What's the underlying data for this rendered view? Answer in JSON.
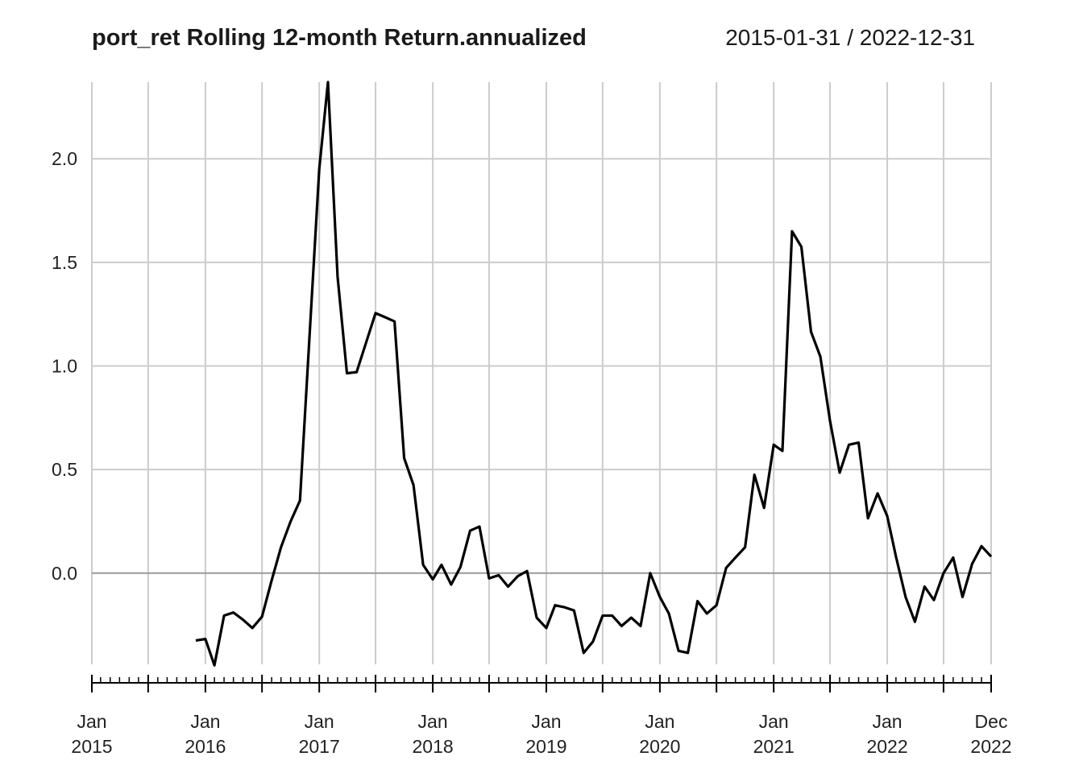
{
  "chart_data": {
    "type": "line",
    "title": "port_ret Rolling 12-month Return.annualized",
    "date_range": "2015-01-31 / 2022-12-31",
    "xlabel": "",
    "ylabel": "",
    "xlim": [
      "2015-01-31",
      "2022-12-31"
    ],
    "ylim": [
      -0.44,
      2.37
    ],
    "yticks": [
      0.0,
      0.5,
      1.0,
      1.5,
      2.0
    ],
    "ytick_labels": [
      "0.0",
      "0.5",
      "1.0",
      "1.5",
      "2.0"
    ],
    "xticks": [
      {
        "date": "2015-01-31",
        "line1": "Jan",
        "line2": "2015"
      },
      {
        "date": "2016-01-31",
        "line1": "Jan",
        "line2": "2016"
      },
      {
        "date": "2017-01-31",
        "line1": "Jan",
        "line2": "2017"
      },
      {
        "date": "2018-01-31",
        "line1": "Jan",
        "line2": "2018"
      },
      {
        "date": "2019-01-31",
        "line1": "Jan",
        "line2": "2019"
      },
      {
        "date": "2020-01-31",
        "line1": "Jan",
        "line2": "2020"
      },
      {
        "date": "2021-01-31",
        "line1": "Jan",
        "line2": "2021"
      },
      {
        "date": "2022-01-31",
        "line1": "Jan",
        "line2": "2022"
      },
      {
        "date": "2022-12-31",
        "line1": "Dec",
        "line2": "2022"
      }
    ],
    "grid": true,
    "colors": {
      "line": "#000000",
      "grid": "#cccccc",
      "zero_line": "#999999",
      "axis": "#000000"
    },
    "series": [
      {
        "name": "port_ret",
        "x": [
          "2015-12-31",
          "2016-01-31",
          "2016-02-29",
          "2016-03-31",
          "2016-04-30",
          "2016-05-31",
          "2016-06-30",
          "2016-07-31",
          "2016-08-31",
          "2016-09-30",
          "2016-10-31",
          "2016-11-30",
          "2016-12-31",
          "2017-01-31",
          "2017-02-28",
          "2017-03-31",
          "2017-04-30",
          "2017-05-31",
          "2017-06-30",
          "2017-07-31",
          "2017-08-31",
          "2017-09-30",
          "2017-10-31",
          "2017-11-30",
          "2017-12-31",
          "2018-01-31",
          "2018-02-28",
          "2018-03-31",
          "2018-04-30",
          "2018-05-31",
          "2018-06-30",
          "2018-07-31",
          "2018-08-31",
          "2018-09-30",
          "2018-10-31",
          "2018-11-30",
          "2018-12-31",
          "2019-01-31",
          "2019-02-28",
          "2019-03-31",
          "2019-04-30",
          "2019-05-31",
          "2019-06-30",
          "2019-07-31",
          "2019-08-31",
          "2019-09-30",
          "2019-10-31",
          "2019-11-30",
          "2019-12-31",
          "2020-01-31",
          "2020-02-29",
          "2020-03-31",
          "2020-04-30",
          "2020-05-31",
          "2020-06-30",
          "2020-07-31",
          "2020-08-31",
          "2020-09-30",
          "2020-10-31",
          "2020-11-30",
          "2020-12-31",
          "2021-01-31",
          "2021-02-28",
          "2021-03-31",
          "2021-04-30",
          "2021-05-31",
          "2021-06-30",
          "2021-07-31",
          "2021-08-31",
          "2021-09-30",
          "2021-10-31",
          "2021-11-30",
          "2021-12-31",
          "2022-01-31",
          "2022-02-28",
          "2022-03-31",
          "2022-04-30",
          "2022-05-31",
          "2022-06-30",
          "2022-07-31",
          "2022-08-31",
          "2022-09-30",
          "2022-10-31",
          "2022-11-30",
          "2022-12-31"
        ],
        "values": [
          -0.325,
          -0.318,
          -0.445,
          -0.205,
          -0.19,
          -0.225,
          -0.265,
          -0.21,
          -0.035,
          0.125,
          0.25,
          0.35,
          1.15,
          1.95,
          2.37,
          1.43,
          0.965,
          0.97,
          1.11,
          1.255,
          1.235,
          1.215,
          0.555,
          0.425,
          0.04,
          -0.03,
          0.04,
          -0.055,
          0.03,
          0.205,
          0.225,
          -0.025,
          -0.01,
          -0.065,
          -0.015,
          0.01,
          -0.215,
          -0.265,
          -0.155,
          -0.165,
          -0.18,
          -0.385,
          -0.33,
          -0.205,
          -0.205,
          -0.255,
          -0.215,
          -0.255,
          0.0,
          -0.115,
          -0.195,
          -0.375,
          -0.385,
          -0.135,
          -0.195,
          -0.155,
          0.025,
          0.075,
          0.125,
          0.475,
          0.315,
          0.62,
          0.59,
          1.65,
          1.575,
          1.165,
          1.045,
          0.735,
          0.485,
          0.62,
          0.63,
          0.265,
          0.385,
          0.275,
          0.08,
          -0.115,
          -0.235,
          -0.065,
          -0.13,
          0.0,
          0.075,
          -0.115,
          0.045,
          0.13,
          0.08
        ]
      }
    ]
  }
}
